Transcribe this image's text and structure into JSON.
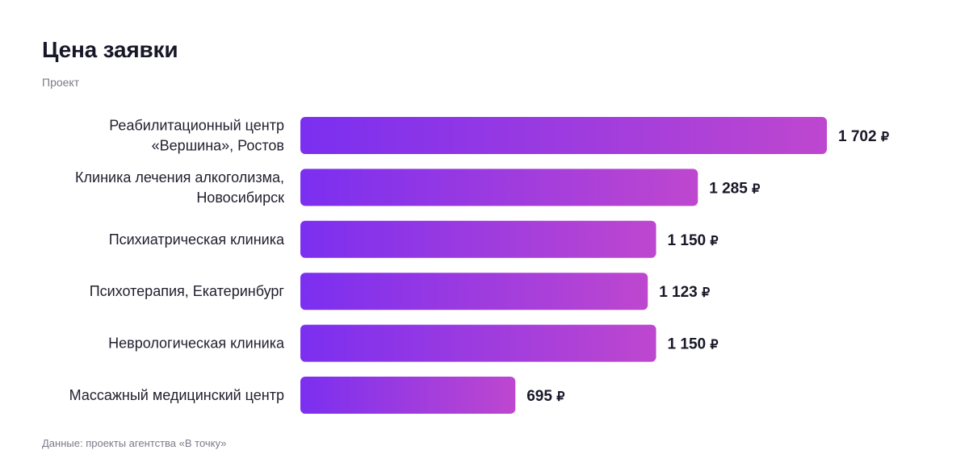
{
  "header": {
    "title": "Цена заявки",
    "subtitle": "Проект"
  },
  "footer": {
    "source": "Данные: проекты агентства «В точку»"
  },
  "colors": {
    "bar_start": "#7B2FF0",
    "bar_end": "#BE47CF",
    "text": "#171728",
    "muted": "#7b7b88"
  },
  "chart_data": {
    "type": "bar",
    "orientation": "horizontal",
    "title": "Цена заявки",
    "ylabel": "Проект",
    "currency": "₽",
    "categories": [
      [
        "Реабилитационный центр",
        "«Вершина», Ростов"
      ],
      [
        "Клиника лечения алкоголизма,",
        "Новосибирск"
      ],
      [
        "Психиатрическая клиника"
      ],
      [
        "Психотерапия, Екатеринбург"
      ],
      [
        "Неврологическая клиника"
      ],
      [
        "Массажный медицинский центр"
      ]
    ],
    "values": [
      1702,
      1285,
      1150,
      1123,
      1150,
      695
    ],
    "value_labels": [
      "1 702",
      "1 285",
      "1 150",
      "1 123",
      "1 150",
      "695"
    ],
    "xlim": [
      0,
      1702
    ],
    "grid": false,
    "legend": "none"
  }
}
